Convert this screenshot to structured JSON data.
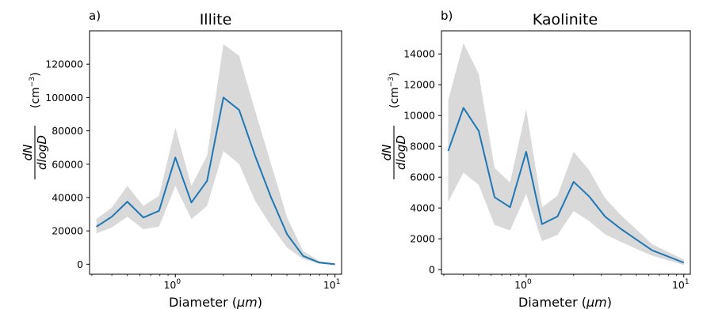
{
  "figure": {
    "colors": {
      "line": "#1f77b4",
      "band": "#d9d9d9",
      "axis": "#000000"
    }
  },
  "chart_data": [
    {
      "type": "line",
      "panel_label": "a)",
      "title": "Illite",
      "xlabel_prefix": "Diameter (",
      "xlabel_unit": "μm",
      "xlabel_suffix": ")",
      "ylabel_numerator": "dN",
      "ylabel_denominator": "dlogD",
      "ylabel_unit": "(cm",
      "ylabel_unit_exp": "−3",
      "ylabel_unit_close": ")",
      "xscale": "log",
      "xlim": [
        0.29,
        11
      ],
      "ylim": [
        -6000,
        140000
      ],
      "yticks": [
        0,
        20000,
        40000,
        60000,
        80000,
        100000,
        120000
      ],
      "ytick_labels": [
        "0",
        "20000",
        "40000",
        "60000",
        "80000",
        "100000",
        "120000"
      ],
      "xticks": [
        1,
        10
      ],
      "xtick_base": [
        "10",
        "10"
      ],
      "xtick_exp": [
        "0",
        "1"
      ],
      "grid": false,
      "series": [
        {
          "x": [
            0.32,
            0.4,
            0.5,
            0.63,
            0.79,
            1.0,
            1.26,
            1.58,
            2.0,
            2.51,
            3.16,
            3.98,
            5.01,
            6.31,
            7.94,
            10.0
          ],
          "y": [
            22500,
            28500,
            37500,
            28000,
            32000,
            64000,
            37000,
            50000,
            100000,
            92500,
            65000,
            40000,
            18000,
            5000,
            1000,
            0
          ],
          "y_lower": [
            18500,
            22000,
            28500,
            21000,
            22500,
            47000,
            27000,
            35000,
            68000,
            60000,
            38000,
            23000,
            10000,
            3000,
            500,
            0
          ],
          "y_upper": [
            27000,
            34000,
            47000,
            35000,
            41000,
            82000,
            47000,
            65000,
            132000,
            125000,
            92000,
            60000,
            28000,
            8000,
            2000,
            500
          ]
        }
      ]
    },
    {
      "type": "line",
      "panel_label": "b)",
      "title": "Kaolinite",
      "xlabel_prefix": "Diameter (",
      "xlabel_unit": "μm",
      "xlabel_suffix": ")",
      "ylabel_numerator": "dN",
      "ylabel_denominator": "dlogD",
      "ylabel_unit": "(cm",
      "ylabel_unit_exp": "−3",
      "ylabel_unit_close": ")",
      "xscale": "log",
      "xlim": [
        0.29,
        11
      ],
      "ylim": [
        -300,
        15500
      ],
      "yticks": [
        0,
        2000,
        4000,
        6000,
        8000,
        10000,
        12000,
        14000
      ],
      "ytick_labels": [
        "0",
        "2000",
        "4000",
        "6000",
        "8000",
        "10000",
        "12000",
        "14000"
      ],
      "xticks": [
        1,
        10
      ],
      "xtick_base": [
        "10",
        "10"
      ],
      "xtick_exp": [
        "0",
        "1"
      ],
      "grid": false,
      "series": [
        {
          "x": [
            0.32,
            0.4,
            0.5,
            0.63,
            0.79,
            1.0,
            1.26,
            1.58,
            2.0,
            2.51,
            3.16,
            3.98,
            5.01,
            6.31,
            7.94,
            10.0
          ],
          "y": [
            7700,
            10500,
            9000,
            4700,
            4050,
            7650,
            2950,
            3450,
            5700,
            4750,
            3450,
            2650,
            1950,
            1250,
            850,
            450
          ],
          "y_lower": [
            4400,
            6300,
            5500,
            2900,
            2550,
            4900,
            1850,
            2250,
            3800,
            3150,
            2300,
            1800,
            1350,
            900,
            600,
            300
          ],
          "y_upper": [
            11000,
            14700,
            12700,
            6600,
            5650,
            10400,
            4050,
            4800,
            7650,
            6450,
            4650,
            3550,
            2600,
            1650,
            1150,
            650
          ]
        }
      ]
    }
  ]
}
